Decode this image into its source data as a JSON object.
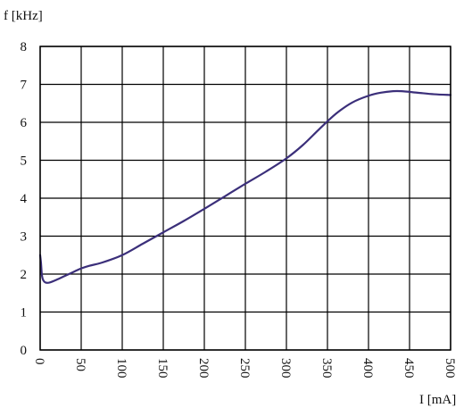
{
  "chart_data": {
    "type": "line",
    "ylabel": "f [kHz]",
    "xlabel": "I [mA]",
    "xlim": [
      0,
      500
    ],
    "ylim": [
      0,
      8
    ],
    "x_ticks": [
      0,
      50,
      100,
      150,
      200,
      250,
      300,
      350,
      400,
      450,
      500
    ],
    "y_ticks": [
      0,
      1,
      2,
      3,
      4,
      5,
      6,
      7,
      8
    ],
    "x_tick_labels": [
      "0",
      "50",
      "100",
      "150",
      "200",
      "250",
      "300",
      "350",
      "400",
      "450",
      "500"
    ],
    "y_tick_labels": [
      "0",
      "1",
      "2",
      "3",
      "4",
      "5",
      "6",
      "7",
      "8"
    ],
    "grid": true,
    "line_color": "#3b2f7a",
    "series": [
      {
        "x": [
          0,
          1,
          2,
          3,
          5,
          8,
          12,
          20,
          30,
          40,
          50,
          60,
          75,
          100,
          125,
          150,
          175,
          200,
          225,
          250,
          275,
          300,
          320,
          340,
          360,
          380,
          400,
          415,
          430,
          440,
          460,
          480,
          500
        ],
        "y": [
          2.5,
          2.3,
          2.0,
          1.88,
          1.8,
          1.77,
          1.78,
          1.85,
          1.95,
          2.05,
          2.15,
          2.22,
          2.3,
          2.5,
          2.8,
          3.1,
          3.4,
          3.72,
          4.05,
          4.38,
          4.7,
          5.05,
          5.4,
          5.82,
          6.22,
          6.52,
          6.7,
          6.78,
          6.82,
          6.82,
          6.78,
          6.74,
          6.72
        ]
      }
    ]
  }
}
